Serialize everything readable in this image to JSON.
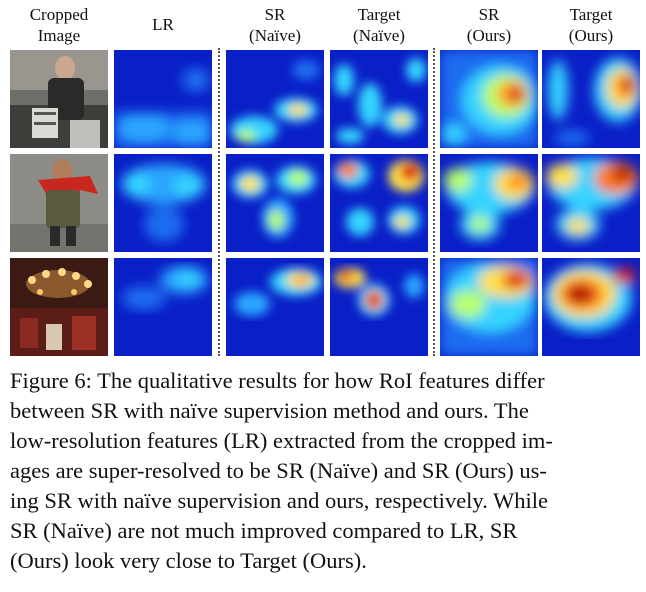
{
  "columns": [
    {
      "line1": "Cropped",
      "line2": "Image"
    },
    {
      "line1": "LR",
      "line2": ""
    },
    {
      "line1": "SR",
      "line2": "(Naïve)"
    },
    {
      "line1": "Target",
      "line2": "(Naïve)"
    },
    {
      "line1": "SR",
      "line2": "(Ours)"
    },
    {
      "line1": "Target",
      "line2": "(Ours)"
    }
  ],
  "rows": [
    {
      "subject": "person with backpack"
    },
    {
      "subject": "child in red scarf"
    },
    {
      "subject": "chandelier interior"
    }
  ],
  "colors": {
    "heat_low": "#0a1fc7",
    "heat_mid": "#33d6ff",
    "heat_high": "#ffe14a",
    "heat_peak": "#b30000"
  },
  "caption": {
    "lines": [
      "Figure 6: The qualitative results for how RoI features differ",
      "between SR with naïve supervision method and ours. The",
      "low-resolution features (LR) extracted from the cropped im-",
      "ages are super-resolved to be SR (Naïve) and SR (Ours) us-",
      "ing SR with naïve supervision and ours, respectively. While",
      "SR (Naïve) are not much improved compared to LR, SR",
      "(Ours) look very close to Target (Ours)."
    ]
  }
}
